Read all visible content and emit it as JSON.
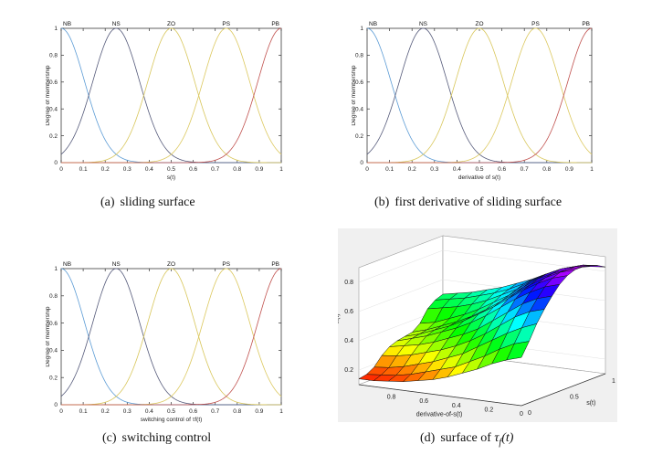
{
  "captions": {
    "a_label": "(a)",
    "a_text": "sliding surface",
    "b_label": "(b)",
    "b_text": "first derivative of sliding surface",
    "c_label": "(c)",
    "c_text": "switching control",
    "d_label": "(d)",
    "d_text": "surface of",
    "d_symbol": "τ",
    "d_sub": "f",
    "d_arg": "(t)"
  },
  "chart_data": [
    {
      "type": "line",
      "title": "",
      "xlabel": "s(t)",
      "ylabel": "Degree of membership",
      "xlim": [
        0,
        1
      ],
      "ylim": [
        0,
        1
      ],
      "xticks": [
        "0",
        "0.1",
        "0.2",
        "0.3",
        "0.4",
        "0.5",
        "0.6",
        "0.7",
        "0.8",
        "0.9",
        "1"
      ],
      "yticks": [
        "0",
        "0.2",
        "0.4",
        "0.6",
        "0.8",
        "1"
      ],
      "grid": false,
      "series": [
        {
          "name": "NB",
          "center": 0.0,
          "sigma": 0.106,
          "color": "#5b9bd5"
        },
        {
          "name": "NS",
          "center": 0.25,
          "sigma": 0.106,
          "color": "#555a7a"
        },
        {
          "name": "ZO",
          "center": 0.5,
          "sigma": 0.106,
          "color": "#d8c65a"
        },
        {
          "name": "PS",
          "center": 0.75,
          "sigma": 0.106,
          "color": "#dcc85e"
        },
        {
          "name": "PB",
          "center": 1.0,
          "sigma": 0.106,
          "color": "#c0504d"
        }
      ]
    },
    {
      "type": "line",
      "title": "",
      "xlabel": "derivative of s(t)",
      "ylabel": "Degree of membership",
      "xlim": [
        0,
        1
      ],
      "ylim": [
        0,
        1
      ],
      "xticks": [
        "0",
        "0.1",
        "0.2",
        "0.3",
        "0.4",
        "0.5",
        "0.6",
        "0.7",
        "0.8",
        "0.9",
        "1"
      ],
      "yticks": [
        "0",
        "0.2",
        "0.4",
        "0.6",
        "0.8",
        "1"
      ],
      "grid": false,
      "series": [
        {
          "name": "NB",
          "center": 0.0,
          "sigma": 0.106,
          "color": "#5b9bd5"
        },
        {
          "name": "NS",
          "center": 0.25,
          "sigma": 0.106,
          "color": "#555a7a"
        },
        {
          "name": "ZO",
          "center": 0.5,
          "sigma": 0.106,
          "color": "#d8c65a"
        },
        {
          "name": "PS",
          "center": 0.75,
          "sigma": 0.106,
          "color": "#dcc85e"
        },
        {
          "name": "PB",
          "center": 1.0,
          "sigma": 0.106,
          "color": "#c0504d"
        }
      ]
    },
    {
      "type": "line",
      "title": "",
      "xlabel": "switching control of τf(t)",
      "ylabel": "Degree of membership",
      "xlim": [
        0,
        1
      ],
      "ylim": [
        0,
        1
      ],
      "xticks": [
        "0",
        "0.1",
        "0.2",
        "0.3",
        "0.4",
        "0.5",
        "0.6",
        "0.7",
        "0.8",
        "0.9",
        "1"
      ],
      "yticks": [
        "0",
        "0.2",
        "0.4",
        "0.6",
        "0.8",
        "1"
      ],
      "grid": false,
      "series": [
        {
          "name": "NB",
          "center": 0.0,
          "sigma": 0.106,
          "color": "#5b9bd5"
        },
        {
          "name": "NS",
          "center": 0.25,
          "sigma": 0.106,
          "color": "#555a7a"
        },
        {
          "name": "ZO",
          "center": 0.5,
          "sigma": 0.106,
          "color": "#d8c65a"
        },
        {
          "name": "PS",
          "center": 0.75,
          "sigma": 0.106,
          "color": "#dcc85e"
        },
        {
          "name": "PB",
          "center": 1.0,
          "sigma": 0.106,
          "color": "#c0504d"
        }
      ]
    },
    {
      "type": "heatmap",
      "subtype": "surface3d",
      "title": "",
      "xlabel": "derivative-of-s(t)",
      "ylabel": "s(t)",
      "zlabel": "τf(t)",
      "xlim": [
        0,
        1
      ],
      "ylim": [
        0,
        1
      ],
      "zlim": [
        0.1,
        0.9
      ],
      "xticks": [
        "0",
        "0.2",
        "0.4",
        "0.6",
        "0.8"
      ],
      "yticks": [
        "0",
        "0.5",
        "1"
      ],
      "zticks": [
        "0.2",
        "0.4",
        "0.6",
        "0.8"
      ],
      "colormap": "hsv",
      "z": [
        [
          0.14,
          0.15,
          0.18,
          0.24,
          0.28,
          0.3,
          0.31,
          0.32,
          0.36,
          0.44,
          0.48,
          0.5
        ],
        [
          0.14,
          0.16,
          0.19,
          0.25,
          0.3,
          0.33,
          0.34,
          0.35,
          0.38,
          0.46,
          0.5,
          0.52
        ],
        [
          0.15,
          0.17,
          0.21,
          0.27,
          0.32,
          0.36,
          0.38,
          0.39,
          0.42,
          0.48,
          0.52,
          0.54
        ],
        [
          0.16,
          0.19,
          0.24,
          0.3,
          0.35,
          0.4,
          0.42,
          0.43,
          0.46,
          0.51,
          0.55,
          0.57
        ],
        [
          0.18,
          0.22,
          0.27,
          0.33,
          0.39,
          0.44,
          0.47,
          0.48,
          0.51,
          0.55,
          0.58,
          0.6
        ],
        [
          0.2,
          0.25,
          0.31,
          0.37,
          0.43,
          0.49,
          0.53,
          0.54,
          0.57,
          0.6,
          0.62,
          0.64
        ],
        [
          0.23,
          0.28,
          0.35,
          0.42,
          0.48,
          0.55,
          0.59,
          0.61,
          0.63,
          0.65,
          0.67,
          0.68
        ],
        [
          0.27,
          0.33,
          0.41,
          0.48,
          0.55,
          0.62,
          0.66,
          0.68,
          0.7,
          0.72,
          0.73,
          0.73
        ],
        [
          0.31,
          0.38,
          0.47,
          0.55,
          0.62,
          0.69,
          0.73,
          0.75,
          0.77,
          0.78,
          0.78,
          0.77
        ],
        [
          0.36,
          0.44,
          0.53,
          0.62,
          0.69,
          0.75,
          0.79,
          0.81,
          0.82,
          0.83,
          0.82,
          0.8
        ],
        [
          0.4,
          0.49,
          0.58,
          0.67,
          0.74,
          0.8,
          0.84,
          0.86,
          0.86,
          0.86,
          0.85,
          0.82
        ],
        [
          0.43,
          0.52,
          0.62,
          0.7,
          0.77,
          0.83,
          0.87,
          0.89,
          0.89,
          0.88,
          0.86,
          0.83
        ]
      ]
    }
  ]
}
